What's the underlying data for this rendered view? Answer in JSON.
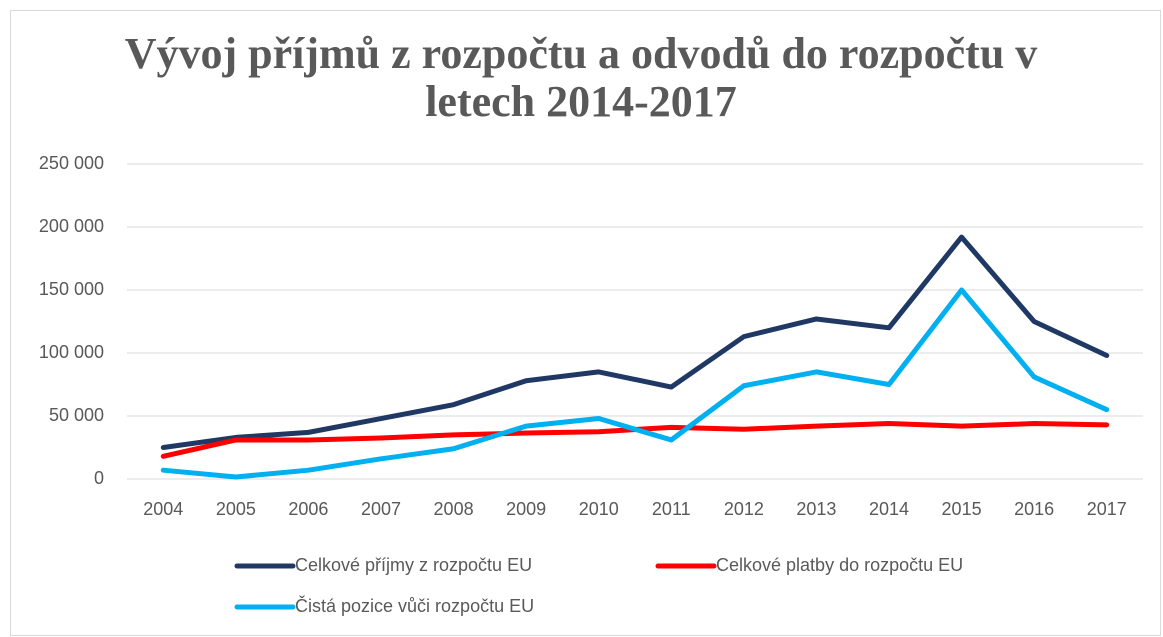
{
  "chart_data": {
    "type": "line",
    "title": "Vývoj příjmů z rozpočtu a odvodů do rozpočtu v letech 2014-2017",
    "categories": [
      "2004",
      "2005",
      "2006",
      "2007",
      "2008",
      "2009",
      "2010",
      "2011",
      "2012",
      "2013",
      "2014",
      "2015",
      "2016",
      "2017"
    ],
    "series": [
      {
        "name": "Celkové příjmy z rozpočtu EU",
        "color": "#203864",
        "values": [
          25000,
          33000,
          37000,
          48000,
          59000,
          78000,
          85000,
          73000,
          113000,
          127000,
          120000,
          192000,
          125000,
          98000
        ]
      },
      {
        "name": "Celkové platby do rozpočtu EU",
        "color": "#ff0000",
        "values": [
          18000,
          31000,
          31000,
          32500,
          35000,
          36500,
          37500,
          41000,
          39500,
          42000,
          44000,
          42000,
          44000,
          43000
        ]
      },
      {
        "name": "Čistá pozice vůči rozpočtu EU",
        "color": "#00b0f0",
        "values": [
          7000,
          1600,
          7000,
          16000,
          24000,
          42000,
          48000,
          31000,
          74000,
          85000,
          75000,
          150000,
          81000,
          55000
        ]
      }
    ],
    "ylim": [
      0,
      250000
    ],
    "yticks": [
      0,
      {
        "value": 50000,
        "label": "50 000"
      },
      {
        "value": 100000,
        "label": "100 000"
      },
      {
        "value": 150000,
        "label": "150 000"
      },
      {
        "value": 200000,
        "label": "200 000"
      },
      {
        "value": 250000,
        "label": "250 000"
      }
    ],
    "grid": true
  }
}
